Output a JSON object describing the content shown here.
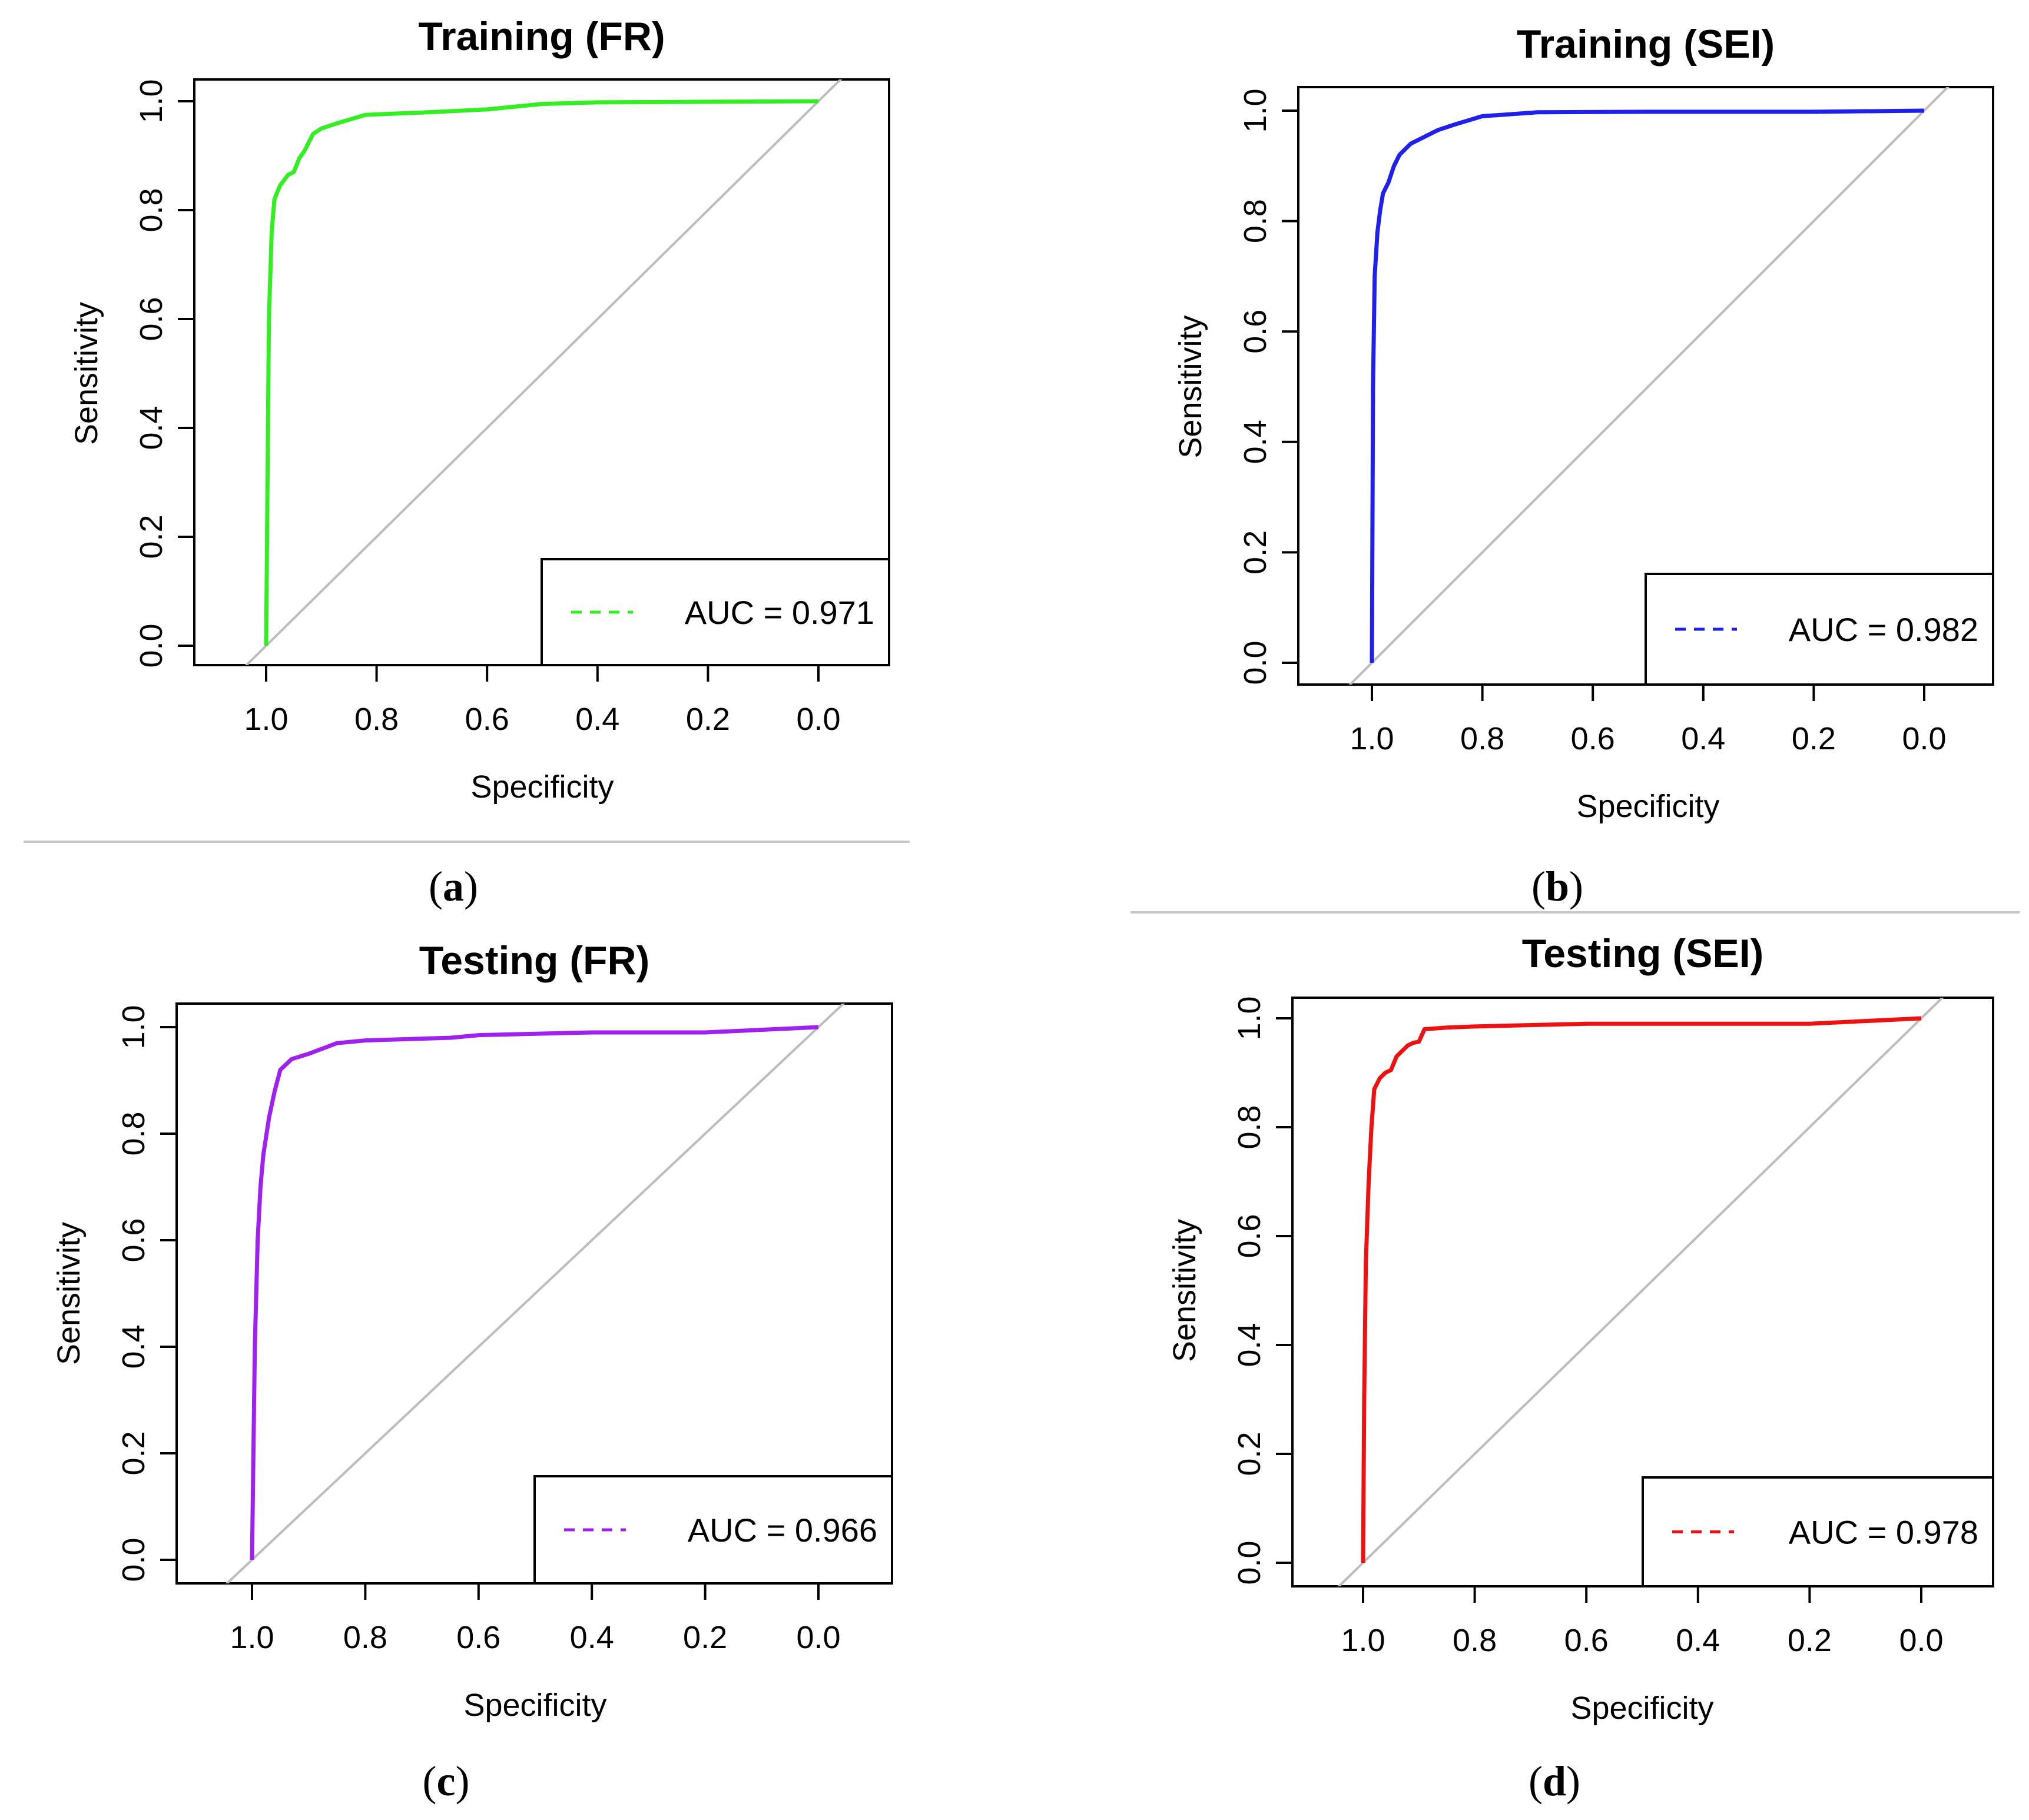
{
  "chart_data": [
    {
      "type": "line",
      "panel_label": "a",
      "title": "Training (FR)",
      "xlabel": "Specificity",
      "ylabel": "Sensitivity",
      "xlim": [
        1.0,
        0.0
      ],
      "ylim": [
        0.0,
        1.0
      ],
      "x_ticks": [
        "1.0",
        "0.8",
        "0.6",
        "0.4",
        "0.2",
        "0.0"
      ],
      "y_ticks": [
        "0.0",
        "0.2",
        "0.4",
        "0.6",
        "0.8",
        "1.0"
      ],
      "legend": "AUC = 0.971",
      "legend_position": "bottom-right",
      "color": "#33ee22",
      "series": [
        {
          "name": "AUC = 0.971",
          "specificity": [
            1.0,
            0.995,
            0.99,
            0.985,
            0.975,
            0.96,
            0.95,
            0.94,
            0.93,
            0.915,
            0.9,
            0.87,
            0.82,
            0.7,
            0.6,
            0.5,
            0.4,
            0.2,
            0.0
          ],
          "sensitivity": [
            0.0,
            0.6,
            0.76,
            0.82,
            0.845,
            0.865,
            0.87,
            0.895,
            0.91,
            0.94,
            0.95,
            0.96,
            0.975,
            0.98,
            0.985,
            0.995,
            0.998,
            0.999,
            1.0
          ]
        }
      ]
    },
    {
      "type": "line",
      "panel_label": "b",
      "title": "Training (SEI)",
      "xlabel": "Specificity",
      "ylabel": "Sensitivity",
      "xlim": [
        1.0,
        0.0
      ],
      "ylim": [
        0.0,
        1.0
      ],
      "x_ticks": [
        "1.0",
        "0.8",
        "0.6",
        "0.4",
        "0.2",
        "0.0"
      ],
      "y_ticks": [
        "0.0",
        "0.2",
        "0.4",
        "0.6",
        "0.8",
        "1.0"
      ],
      "legend": "AUC = 0.982",
      "legend_position": "bottom-right",
      "color": "#1f1fee",
      "series": [
        {
          "name": "AUC = 0.982",
          "specificity": [
            1.0,
            0.998,
            0.995,
            0.99,
            0.985,
            0.98,
            0.97,
            0.96,
            0.95,
            0.93,
            0.91,
            0.88,
            0.85,
            0.8,
            0.7,
            0.5,
            0.2,
            0.0
          ],
          "sensitivity": [
            0.0,
            0.5,
            0.7,
            0.78,
            0.82,
            0.85,
            0.87,
            0.9,
            0.92,
            0.94,
            0.95,
            0.965,
            0.975,
            0.99,
            0.997,
            0.998,
            0.998,
            1.0
          ]
        }
      ]
    },
    {
      "type": "line",
      "panel_label": "c",
      "title": "Testing (FR)",
      "xlabel": "Specificity",
      "ylabel": "Sensitivity",
      "xlim": [
        1.0,
        0.0
      ],
      "ylim": [
        0.0,
        1.0
      ],
      "x_ticks": [
        "1.0",
        "0.8",
        "0.6",
        "0.4",
        "0.2",
        "0.0"
      ],
      "y_ticks": [
        "0.0",
        "0.2",
        "0.4",
        "0.6",
        "0.8",
        "1.0"
      ],
      "legend": "AUC = 0.966",
      "legend_position": "bottom-right",
      "color": "#a020f0",
      "series": [
        {
          "name": "AUC = 0.966",
          "specificity": [
            1.0,
            0.995,
            0.99,
            0.985,
            0.98,
            0.97,
            0.96,
            0.95,
            0.93,
            0.9,
            0.85,
            0.8,
            0.65,
            0.6,
            0.4,
            0.2,
            0.0
          ],
          "sensitivity": [
            0.0,
            0.4,
            0.6,
            0.7,
            0.76,
            0.83,
            0.88,
            0.92,
            0.94,
            0.95,
            0.97,
            0.975,
            0.98,
            0.985,
            0.99,
            0.99,
            1.0
          ]
        }
      ]
    },
    {
      "type": "line",
      "panel_label": "d",
      "title": "Testing (SEI)",
      "xlabel": "Specificity",
      "ylabel": "Sensitivity",
      "xlim": [
        1.0,
        0.0
      ],
      "ylim": [
        0.0,
        1.0
      ],
      "x_ticks": [
        "1.0",
        "0.8",
        "0.6",
        "0.4",
        "0.2",
        "0.0"
      ],
      "y_ticks": [
        "0.0",
        "0.2",
        "0.4",
        "0.6",
        "0.8",
        "1.0"
      ],
      "legend": "AUC = 0.978",
      "legend_position": "bottom-right",
      "color": "#ee1111",
      "series": [
        {
          "name": "AUC = 0.978",
          "specificity": [
            1.0,
            0.998,
            0.995,
            0.99,
            0.985,
            0.98,
            0.97,
            0.96,
            0.95,
            0.94,
            0.92,
            0.91,
            0.9,
            0.89,
            0.85,
            0.8,
            0.6,
            0.4,
            0.2,
            0.0
          ],
          "sensitivity": [
            0.0,
            0.3,
            0.55,
            0.7,
            0.8,
            0.87,
            0.89,
            0.9,
            0.905,
            0.93,
            0.95,
            0.955,
            0.957,
            0.98,
            0.983,
            0.985,
            0.99,
            0.99,
            0.99,
            1.0
          ]
        }
      ]
    }
  ]
}
